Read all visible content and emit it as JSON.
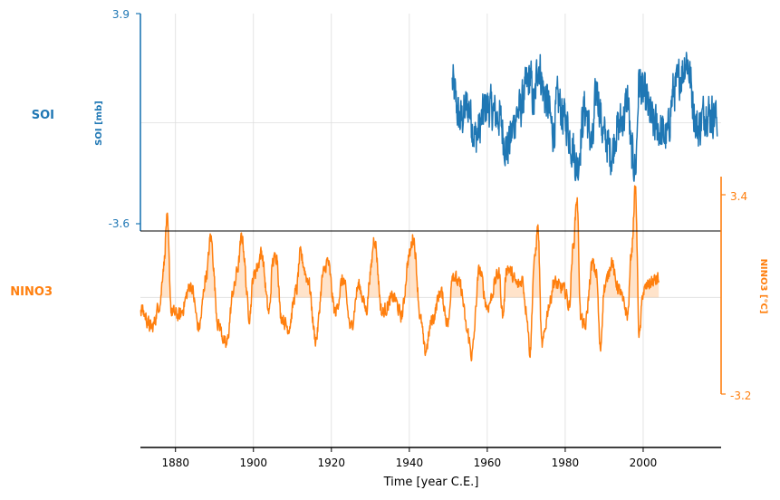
{
  "chart_data": {
    "type": "line",
    "xlabel": "Time [year C.E.]",
    "xlim": [
      1871,
      2020
    ],
    "xticks": [
      1880,
      1900,
      1920,
      1940,
      1960,
      1980,
      2000
    ],
    "grid": true,
    "panels": [
      {
        "name": "SOI",
        "ylabel": "SOI [mb]",
        "color": "#1f77b4",
        "ylim": [
          -3.6,
          3.9
        ],
        "yticks": [
          "3.9",
          "-3.6"
        ],
        "axis_side": "left",
        "x_start": 1951,
        "x_end": 2019,
        "anchors": [
          [
            1951,
            1.4
          ],
          [
            1953,
            0.1
          ],
          [
            1955,
            0.6
          ],
          [
            1957,
            -0.5
          ],
          [
            1960,
            0.6
          ],
          [
            1963,
            0.2
          ],
          [
            1965,
            -0.9
          ],
          [
            1968,
            0.4
          ],
          [
            1971,
            1.6
          ],
          [
            1972,
            0.6
          ],
          [
            1973,
            2.1
          ],
          [
            1975,
            0.9
          ],
          [
            1977,
            -0.3
          ],
          [
            1978,
            0.8
          ],
          [
            1980,
            0.1
          ],
          [
            1982,
            -0.9
          ],
          [
            1983,
            -1.6
          ],
          [
            1985,
            0.5
          ],
          [
            1987,
            -0.8
          ],
          [
            1988,
            1.2
          ],
          [
            1990,
            -0.5
          ],
          [
            1992,
            -1.1
          ],
          [
            1993,
            -0.3
          ],
          [
            1995,
            0.2
          ],
          [
            1996,
            0.9
          ],
          [
            1997,
            -1.1
          ],
          [
            1998,
            -1.6
          ],
          [
            1999,
            1.5
          ],
          [
            2000,
            1.0
          ],
          [
            2003,
            -0.1
          ],
          [
            2006,
            -0.5
          ],
          [
            2008,
            1.2
          ],
          [
            2010,
            1.8
          ],
          [
            2011,
            2.3
          ],
          [
            2014,
            -0.2
          ],
          [
            2016,
            0.4
          ],
          [
            2018,
            0.3
          ],
          [
            2019,
            0.1
          ]
        ]
      },
      {
        "name": "NINO3",
        "ylabel": "NINO3 [°C]",
        "color": "#ff7f0e",
        "ylim": [
          -3.2,
          3.4
        ],
        "yticks": [
          "3.4",
          "-3.2"
        ],
        "axis_side": "right",
        "fill_above": 0,
        "x_start": 1871,
        "x_end": 2004,
        "anchors": [
          [
            1871,
            -0.4
          ],
          [
            1874,
            -1.0
          ],
          [
            1876,
            -0.2
          ],
          [
            1877,
            1.1
          ],
          [
            1877.8,
            2.6
          ],
          [
            1879,
            -0.5
          ],
          [
            1881,
            -0.6
          ],
          [
            1884,
            0.4
          ],
          [
            1886,
            -1.0
          ],
          [
            1888,
            0.8
          ],
          [
            1889,
            2.0
          ],
          [
            1891,
            -0.9
          ],
          [
            1893,
            -1.6
          ],
          [
            1895,
            0.3
          ],
          [
            1896,
            1.0
          ],
          [
            1897,
            2.0
          ],
          [
            1899,
            -0.6
          ],
          [
            1900,
            0.7
          ],
          [
            1901,
            1.0
          ],
          [
            1902,
            1.5
          ],
          [
            1904,
            -0.5
          ],
          [
            1905,
            1.2
          ],
          [
            1906,
            1.4
          ],
          [
            1907,
            -0.6
          ],
          [
            1909,
            -1.0
          ],
          [
            1911,
            0.2
          ],
          [
            1912,
            1.4
          ],
          [
            1914,
            0.6
          ],
          [
            1916,
            -1.4
          ],
          [
            1918,
            0.8
          ],
          [
            1919,
            1.2
          ],
          [
            1921,
            -0.5
          ],
          [
            1923,
            0.6
          ],
          [
            1925,
            -1.0
          ],
          [
            1927,
            0.4
          ],
          [
            1929,
            -0.4
          ],
          [
            1930,
            0.8
          ],
          [
            1931,
            2.0
          ],
          [
            1933,
            -0.5
          ],
          [
            1936,
            0.0
          ],
          [
            1938,
            -0.6
          ],
          [
            1940,
            1.4
          ],
          [
            1941,
            2.0
          ],
          [
            1943,
            -0.8
          ],
          [
            1944,
            -1.8
          ],
          [
            1946,
            -0.7
          ],
          [
            1948,
            0.2
          ],
          [
            1950,
            -0.9
          ],
          [
            1951,
            0.8
          ],
          [
            1953,
            0.4
          ],
          [
            1955,
            -1.2
          ],
          [
            1956,
            -1.9
          ],
          [
            1958,
            0.9
          ],
          [
            1960,
            -0.3
          ],
          [
            1963,
            0.8
          ],
          [
            1964,
            -0.6
          ],
          [
            1965,
            1.0
          ],
          [
            1968,
            0.4
          ],
          [
            1969,
            0.6
          ],
          [
            1970,
            -0.4
          ],
          [
            1971,
            -1.8
          ],
          [
            1972,
            1.1
          ],
          [
            1973,
            2.3
          ],
          [
            1974,
            -1.6
          ],
          [
            1976,
            -0.2
          ],
          [
            1977,
            0.5
          ],
          [
            1979,
            0.3
          ],
          [
            1980,
            0.2
          ],
          [
            1981,
            -0.3
          ],
          [
            1982,
            1.6
          ],
          [
            1983,
            3.3
          ],
          [
            1984,
            -0.7
          ],
          [
            1985,
            -1.0
          ],
          [
            1987,
            1.1
          ],
          [
            1988,
            0.8
          ],
          [
            1989,
            -1.7
          ],
          [
            1990,
            0.3
          ],
          [
            1992,
            1.2
          ],
          [
            1993,
            0.5
          ],
          [
            1994,
            0.2
          ],
          [
            1995,
            -0.2
          ],
          [
            1996,
            -0.6
          ],
          [
            1997,
            1.5
          ],
          [
            1998,
            3.6
          ],
          [
            1999,
            -1.3
          ],
          [
            2000,
            0.2
          ],
          [
            2002,
            0.5
          ],
          [
            2004,
            0.6
          ]
        ]
      }
    ]
  }
}
